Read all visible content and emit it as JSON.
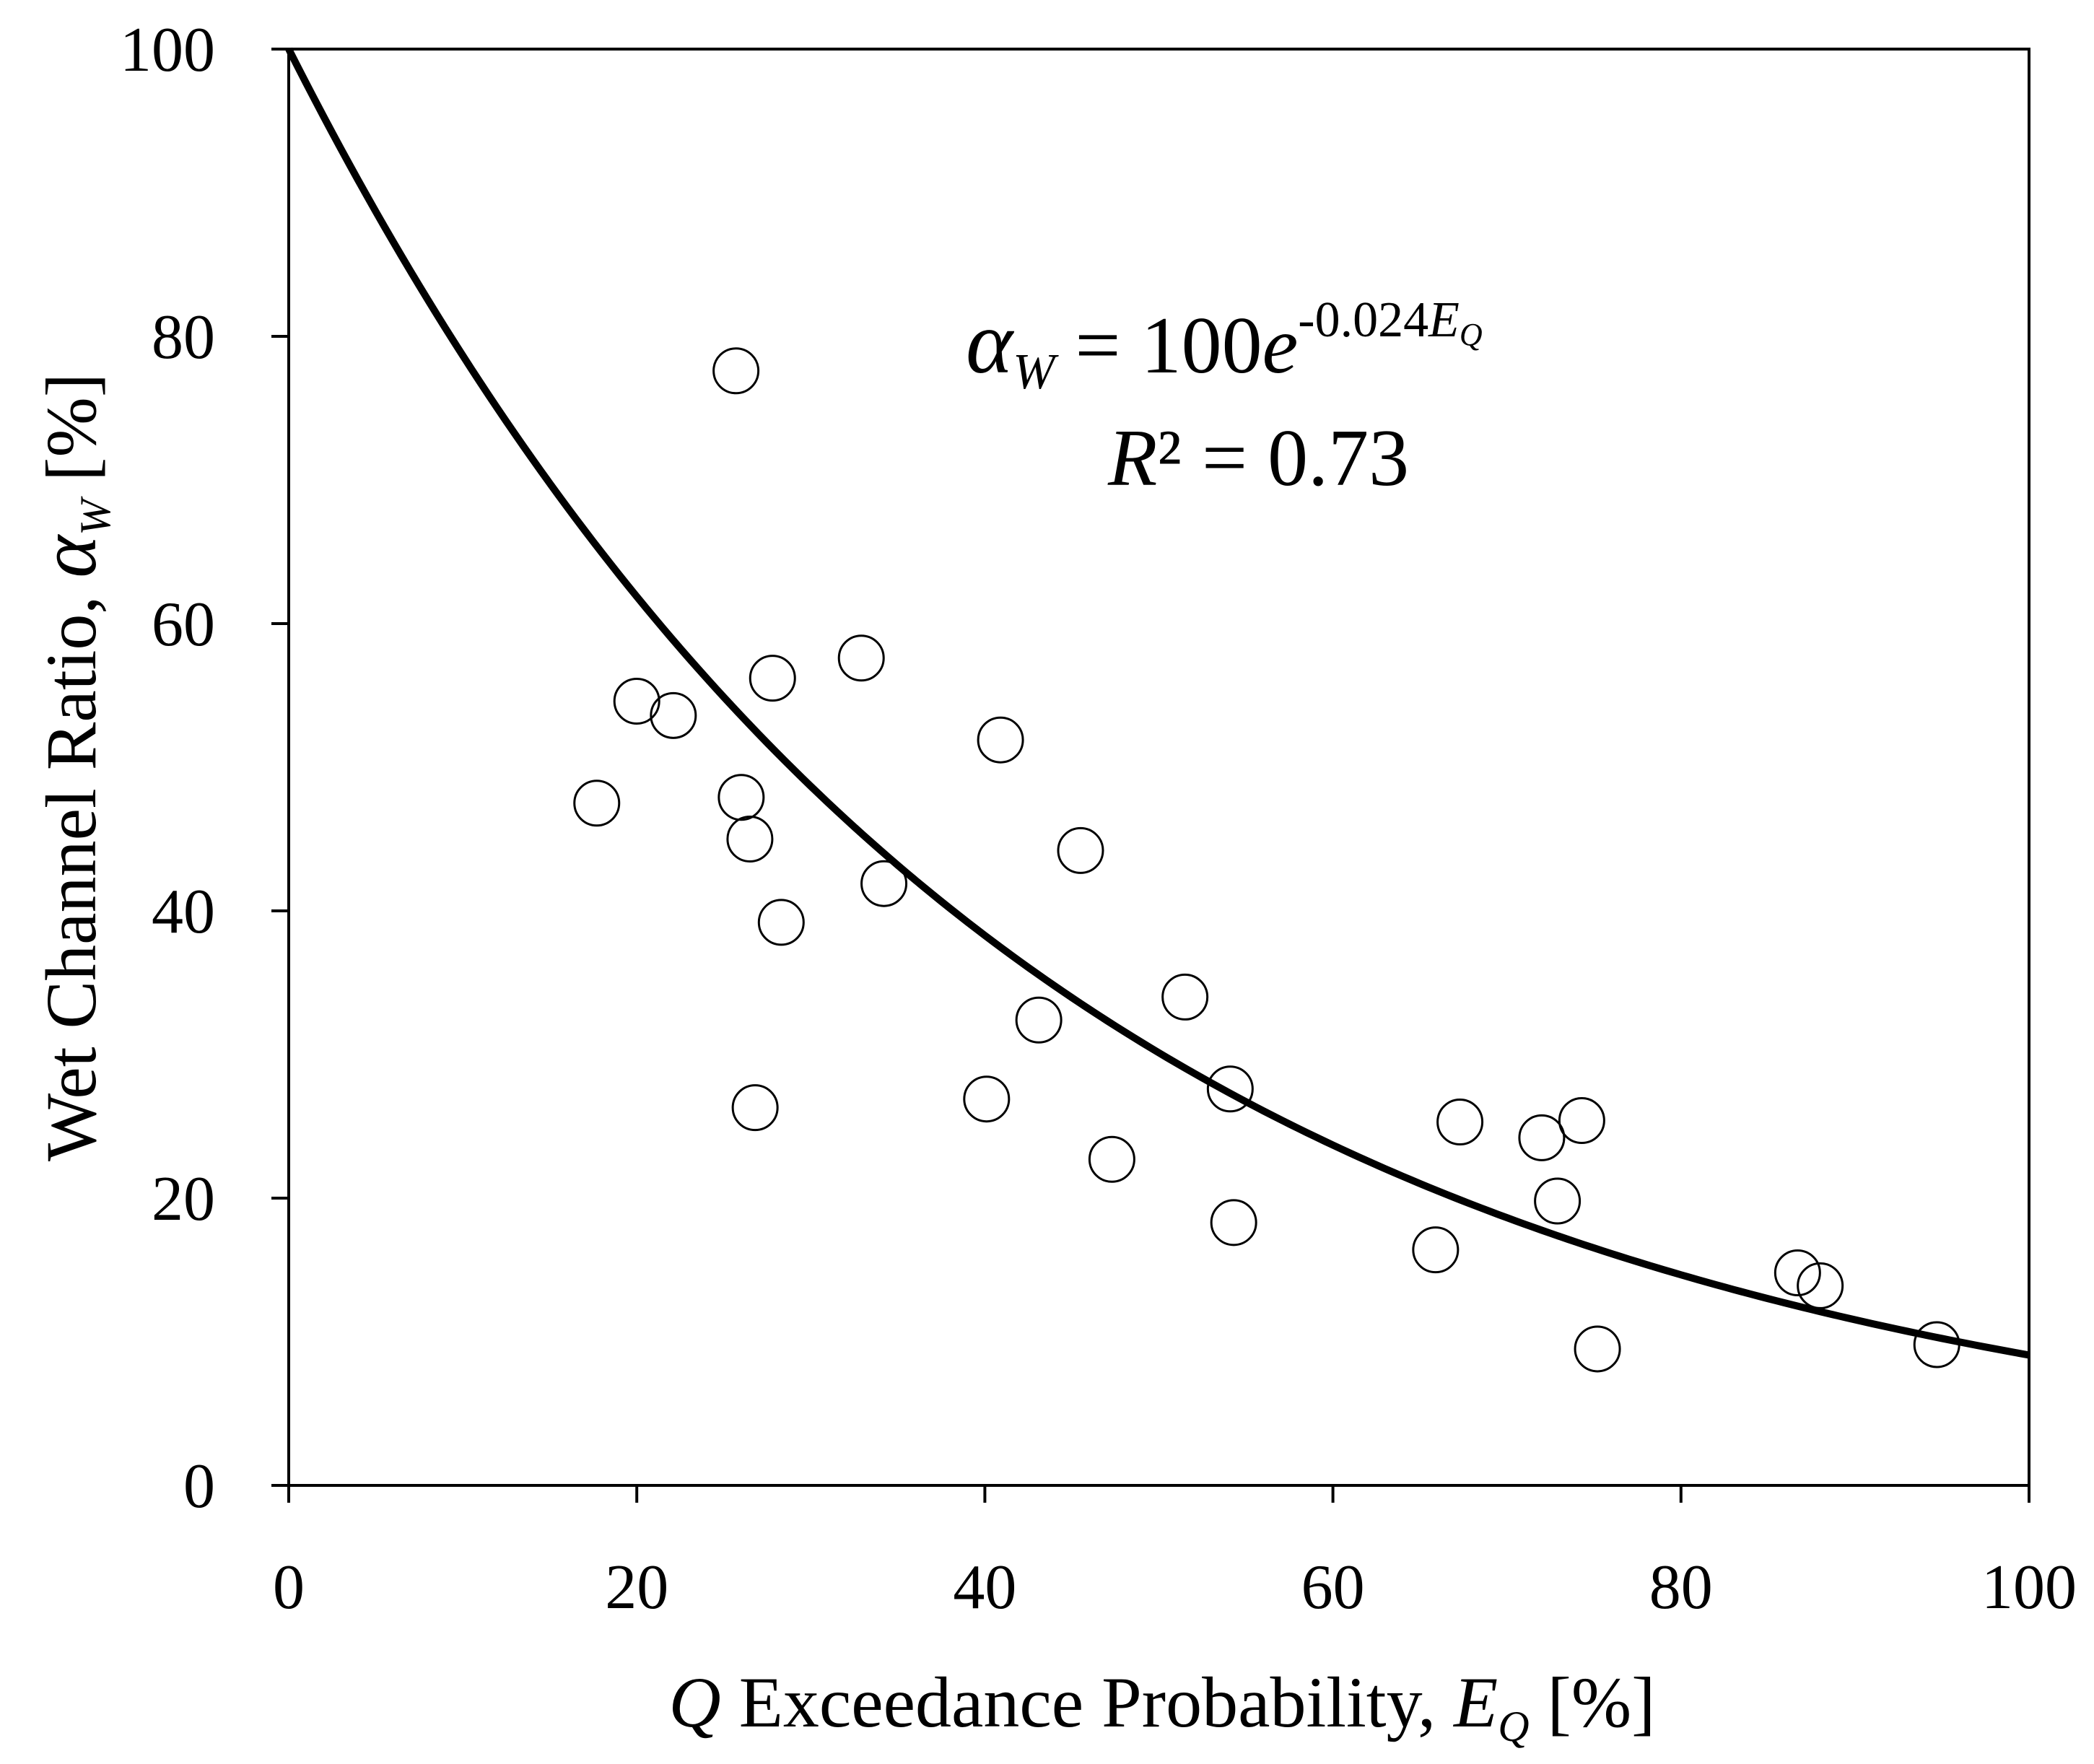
{
  "chart_data": {
    "type": "scatter",
    "title": "",
    "xlabel": {
      "var": "Q",
      "text": " Exceedance Probability, ",
      "sym": "E",
      "sub": "Q",
      "unit": " [%]"
    },
    "ylabel": {
      "text": "Wet Channel Ratio, ",
      "sym": "α",
      "sub": "W",
      "unit": " [%]"
    },
    "xlim": [
      0,
      100
    ],
    "ylim": [
      0,
      100
    ],
    "xticks": [
      0,
      20,
      40,
      60,
      80,
      100
    ],
    "yticks": [
      0,
      20,
      40,
      60,
      80,
      100
    ],
    "grid": false,
    "series": [
      {
        "name": "observations",
        "marker": "open-circle",
        "x": [
          17.7,
          20.0,
          22.1,
          25.7,
          26.0,
          26.5,
          26.8,
          27.8,
          28.3,
          32.9,
          34.2,
          40.1,
          40.9,
          43.1,
          45.5,
          47.3,
          51.5,
          54.1,
          54.3,
          65.9,
          67.3,
          72.0,
          72.9,
          74.3,
          75.2,
          86.7,
          88.0,
          94.7
        ],
        "y": [
          47.5,
          54.6,
          53.6,
          77.6,
          47.9,
          45.0,
          26.3,
          56.2,
          39.2,
          57.6,
          41.9,
          26.9,
          51.9,
          32.4,
          44.2,
          22.7,
          34.0,
          27.6,
          18.3,
          16.4,
          25.3,
          24.2,
          19.8,
          25.4,
          9.5,
          14.8,
          13.9,
          9.8
        ]
      },
      {
        "name": "exponential fit",
        "type": "line",
        "equation": {
          "a": 100,
          "b": -0.024
        }
      }
    ],
    "annotations": {
      "eq_lhs_sym": "α",
      "eq_lhs_sub": "W",
      "eq_rhs": " = 100",
      "eq_base": "e",
      "eq_exp": "-0.024",
      "eq_exp_sym": "E",
      "eq_exp_sub": "Q",
      "r2_sym": "R",
      "r2_text": "² = 0.73"
    }
  }
}
